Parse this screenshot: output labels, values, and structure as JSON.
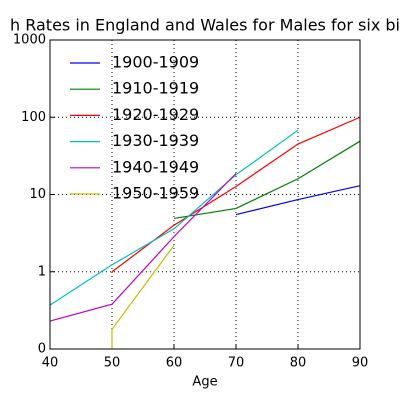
{
  "chart_data": {
    "type": "line",
    "title": "h Rates in England and Wales for Males for six bi",
    "xlabel": "Age",
    "xlim": [
      40,
      90
    ],
    "xticks": [
      40,
      50,
      60,
      70,
      80,
      90
    ],
    "ylim": [
      0.1,
      1000
    ],
    "log_y": true,
    "yticks": [
      {
        "value": 0.1,
        "label": "0"
      },
      1,
      10,
      100,
      1000
    ],
    "grid": true,
    "legend": "upper left",
    "series": [
      {
        "name": "1900-1909",
        "color": "#0000ff",
        "x": [
          70,
          80,
          90
        ],
        "values": [
          5.5,
          8.6,
          13
        ]
      },
      {
        "name": "1910-1919",
        "color": "#008000",
        "x": [
          60,
          70,
          80,
          90
        ],
        "values": [
          4.9,
          6.6,
          16,
          49
        ]
      },
      {
        "name": "1920-1929",
        "color": "#ff0000",
        "x": [
          50,
          60,
          70,
          80,
          90
        ],
        "values": [
          1.0,
          4,
          12.7,
          45,
          100
        ]
      },
      {
        "name": "1930-1939",
        "color": "#00bfbf",
        "x": [
          40,
          50,
          60,
          70,
          80
        ],
        "values": [
          0.37,
          1.23,
          3.6,
          18,
          68
        ]
      },
      {
        "name": "1940-1949",
        "color": "#bf00bf",
        "x": [
          40,
          50,
          60,
          70
        ],
        "values": [
          0.23,
          0.38,
          2.85,
          18.7
        ]
      },
      {
        "name": "1950-1959",
        "color": "#bfbf00",
        "x": [
          50,
          50,
          60
        ],
        "values": [
          0.1,
          0.18,
          2.2
        ]
      }
    ]
  }
}
